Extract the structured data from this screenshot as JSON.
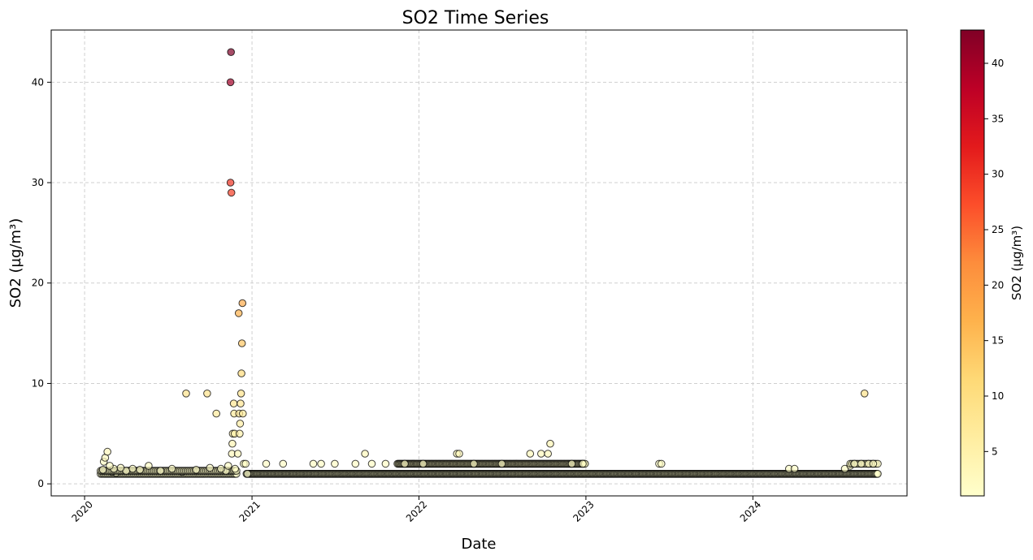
{
  "chart_data": {
    "type": "scatter",
    "title": "SO2 Time Series",
    "xlabel": "Date",
    "ylabel": "SO2 (µg/m³)",
    "colorbar_label": "SO2 (µg/m³)",
    "colormap": "YlOrRd",
    "colormap_stops": [
      "#ffffcc",
      "#ffeda0",
      "#fed976",
      "#feb24c",
      "#fd8d3c",
      "#fc4e2a",
      "#e31a1c",
      "#bd0026",
      "#800026"
    ],
    "color_range": [
      1,
      43
    ],
    "marker_alpha": 0.7,
    "marker_edge_color": "#000000",
    "grid": true,
    "xlim": [
      "2019-10-20",
      "2024-12-03"
    ],
    "ylim": [
      -1.2,
      45.2
    ],
    "x_ticks": [
      "2020-01-01",
      "2021-01-01",
      "2022-01-01",
      "2023-01-01",
      "2024-01-01"
    ],
    "x_tick_labels": [
      "2020",
      "2021",
      "2022",
      "2023",
      "2024"
    ],
    "y_ticks": [
      0,
      10,
      20,
      30,
      40
    ],
    "y_tick_labels": [
      "0",
      "10",
      "20",
      "30",
      "40"
    ],
    "colorbar_ticks": [
      5,
      10,
      15,
      20,
      25,
      30,
      35,
      40
    ],
    "colorbar_tick_labels": [
      "5",
      "10",
      "15",
      "20",
      "25",
      "30",
      "35",
      "40"
    ],
    "points": [
      {
        "x": "2020-02-10",
        "y": 1.4
      },
      {
        "x": "2020-02-12",
        "y": 2.2
      },
      {
        "x": "2020-02-15",
        "y": 2.6
      },
      {
        "x": "2020-02-20",
        "y": 3.2
      },
      {
        "x": "2020-02-25",
        "y": 1.8
      },
      {
        "x": "2020-03-01",
        "y": 1.2
      },
      {
        "x": "2020-03-05",
        "y": 1.5
      },
      {
        "x": "2020-03-10",
        "y": 1.1
      },
      {
        "x": "2020-03-20",
        "y": 1.6
      },
      {
        "x": "2020-04-01",
        "y": 1.3
      },
      {
        "x": "2020-04-15",
        "y": 1.5
      },
      {
        "x": "2020-05-01",
        "y": 1.4
      },
      {
        "x": "2020-05-20",
        "y": 1.8
      },
      {
        "x": "2020-06-15",
        "y": 1.3
      },
      {
        "x": "2020-07-10",
        "y": 1.5
      },
      {
        "x": "2020-08-01",
        "y": 1.2
      },
      {
        "x": "2020-08-10",
        "y": 9.0
      },
      {
        "x": "2020-09-01",
        "y": 1.4
      },
      {
        "x": "2020-09-25",
        "y": 9.0
      },
      {
        "x": "2020-10-01",
        "y": 1.6
      },
      {
        "x": "2020-10-15",
        "y": 7.0
      },
      {
        "x": "2020-10-25",
        "y": 1.5
      },
      {
        "x": "2020-11-05",
        "y": 1.3
      },
      {
        "x": "2020-11-10",
        "y": 1.8
      },
      {
        "x": "2020-11-15",
        "y": 30.0
      },
      {
        "x": "2020-11-15",
        "y": 40.0
      },
      {
        "x": "2020-11-16",
        "y": 43.0
      },
      {
        "x": "2020-11-17",
        "y": 29.0
      },
      {
        "x": "2020-11-18",
        "y": 3.0
      },
      {
        "x": "2020-11-19",
        "y": 4.0
      },
      {
        "x": "2020-11-20",
        "y": 5.0
      },
      {
        "x": "2020-11-22",
        "y": 8.0
      },
      {
        "x": "2020-11-23",
        "y": 7.0
      },
      {
        "x": "2020-11-24",
        "y": 5.0
      },
      {
        "x": "2020-11-25",
        "y": 1.5
      },
      {
        "x": "2020-12-01",
        "y": 3.0
      },
      {
        "x": "2020-12-03",
        "y": 17.0
      },
      {
        "x": "2020-12-04",
        "y": 7.0
      },
      {
        "x": "2020-12-05",
        "y": 5.0
      },
      {
        "x": "2020-12-06",
        "y": 6.0
      },
      {
        "x": "2020-12-07",
        "y": 8.0
      },
      {
        "x": "2020-12-08",
        "y": 9.0
      },
      {
        "x": "2020-12-09",
        "y": 11.0
      },
      {
        "x": "2020-12-10",
        "y": 14.0
      },
      {
        "x": "2020-12-11",
        "y": 18.0
      },
      {
        "x": "2020-12-12",
        "y": 7.0
      },
      {
        "x": "2020-12-14",
        "y": 2.0
      },
      {
        "x": "2020-12-18",
        "y": 2.0
      },
      {
        "x": "2020-12-22",
        "y": 1.0
      },
      {
        "x": "2021-02-01",
        "y": 2.0
      },
      {
        "x": "2021-03-10",
        "y": 2.0
      },
      {
        "x": "2021-05-15",
        "y": 2.0
      },
      {
        "x": "2021-06-01",
        "y": 2.0
      },
      {
        "x": "2021-07-01",
        "y": 2.0
      },
      {
        "x": "2021-08-15",
        "y": 2.0
      },
      {
        "x": "2021-09-05",
        "y": 3.0
      },
      {
        "x": "2021-09-20",
        "y": 2.0
      },
      {
        "x": "2021-10-20",
        "y": 2.0
      },
      {
        "x": "2021-12-01",
        "y": 2.0
      },
      {
        "x": "2022-01-10",
        "y": 2.0
      },
      {
        "x": "2022-03-25",
        "y": 3.0
      },
      {
        "x": "2022-03-30",
        "y": 3.0
      },
      {
        "x": "2022-05-01",
        "y": 2.0
      },
      {
        "x": "2022-07-01",
        "y": 2.0
      },
      {
        "x": "2022-09-01",
        "y": 3.0
      },
      {
        "x": "2022-09-25",
        "y": 3.0
      },
      {
        "x": "2022-10-10",
        "y": 3.0
      },
      {
        "x": "2022-10-15",
        "y": 4.0
      },
      {
        "x": "2022-12-01",
        "y": 2.0
      },
      {
        "x": "2022-12-25",
        "y": 2.0
      },
      {
        "x": "2023-06-10",
        "y": 2.0
      },
      {
        "x": "2023-06-15",
        "y": 2.0
      },
      {
        "x": "2024-03-20",
        "y": 1.5
      },
      {
        "x": "2024-04-01",
        "y": 1.5
      },
      {
        "x": "2024-07-20",
        "y": 1.5
      },
      {
        "x": "2024-08-01",
        "y": 1.8
      },
      {
        "x": "2024-08-10",
        "y": 2.0
      },
      {
        "x": "2024-08-25",
        "y": 2.0
      },
      {
        "x": "2024-09-01",
        "y": 9.0
      },
      {
        "x": "2024-09-10",
        "y": 2.0
      },
      {
        "x": "2024-09-20",
        "y": 2.0
      }
    ],
    "dense_segments": [
      {
        "start": "2020-02-05",
        "end": "2020-11-28",
        "y": 1.0,
        "step_days": 3
      },
      {
        "start": "2020-02-05",
        "end": "2020-11-28",
        "y": 1.3,
        "step_days": 3
      },
      {
        "start": "2020-12-20",
        "end": "2024-09-30",
        "y": 1.0,
        "step_days": 2
      },
      {
        "start": "2021-11-15",
        "end": "2022-12-31",
        "y": 2.0,
        "step_days": 2
      },
      {
        "start": "2024-08-01",
        "end": "2024-09-30",
        "y": 2.0,
        "step_days": 4
      }
    ]
  }
}
